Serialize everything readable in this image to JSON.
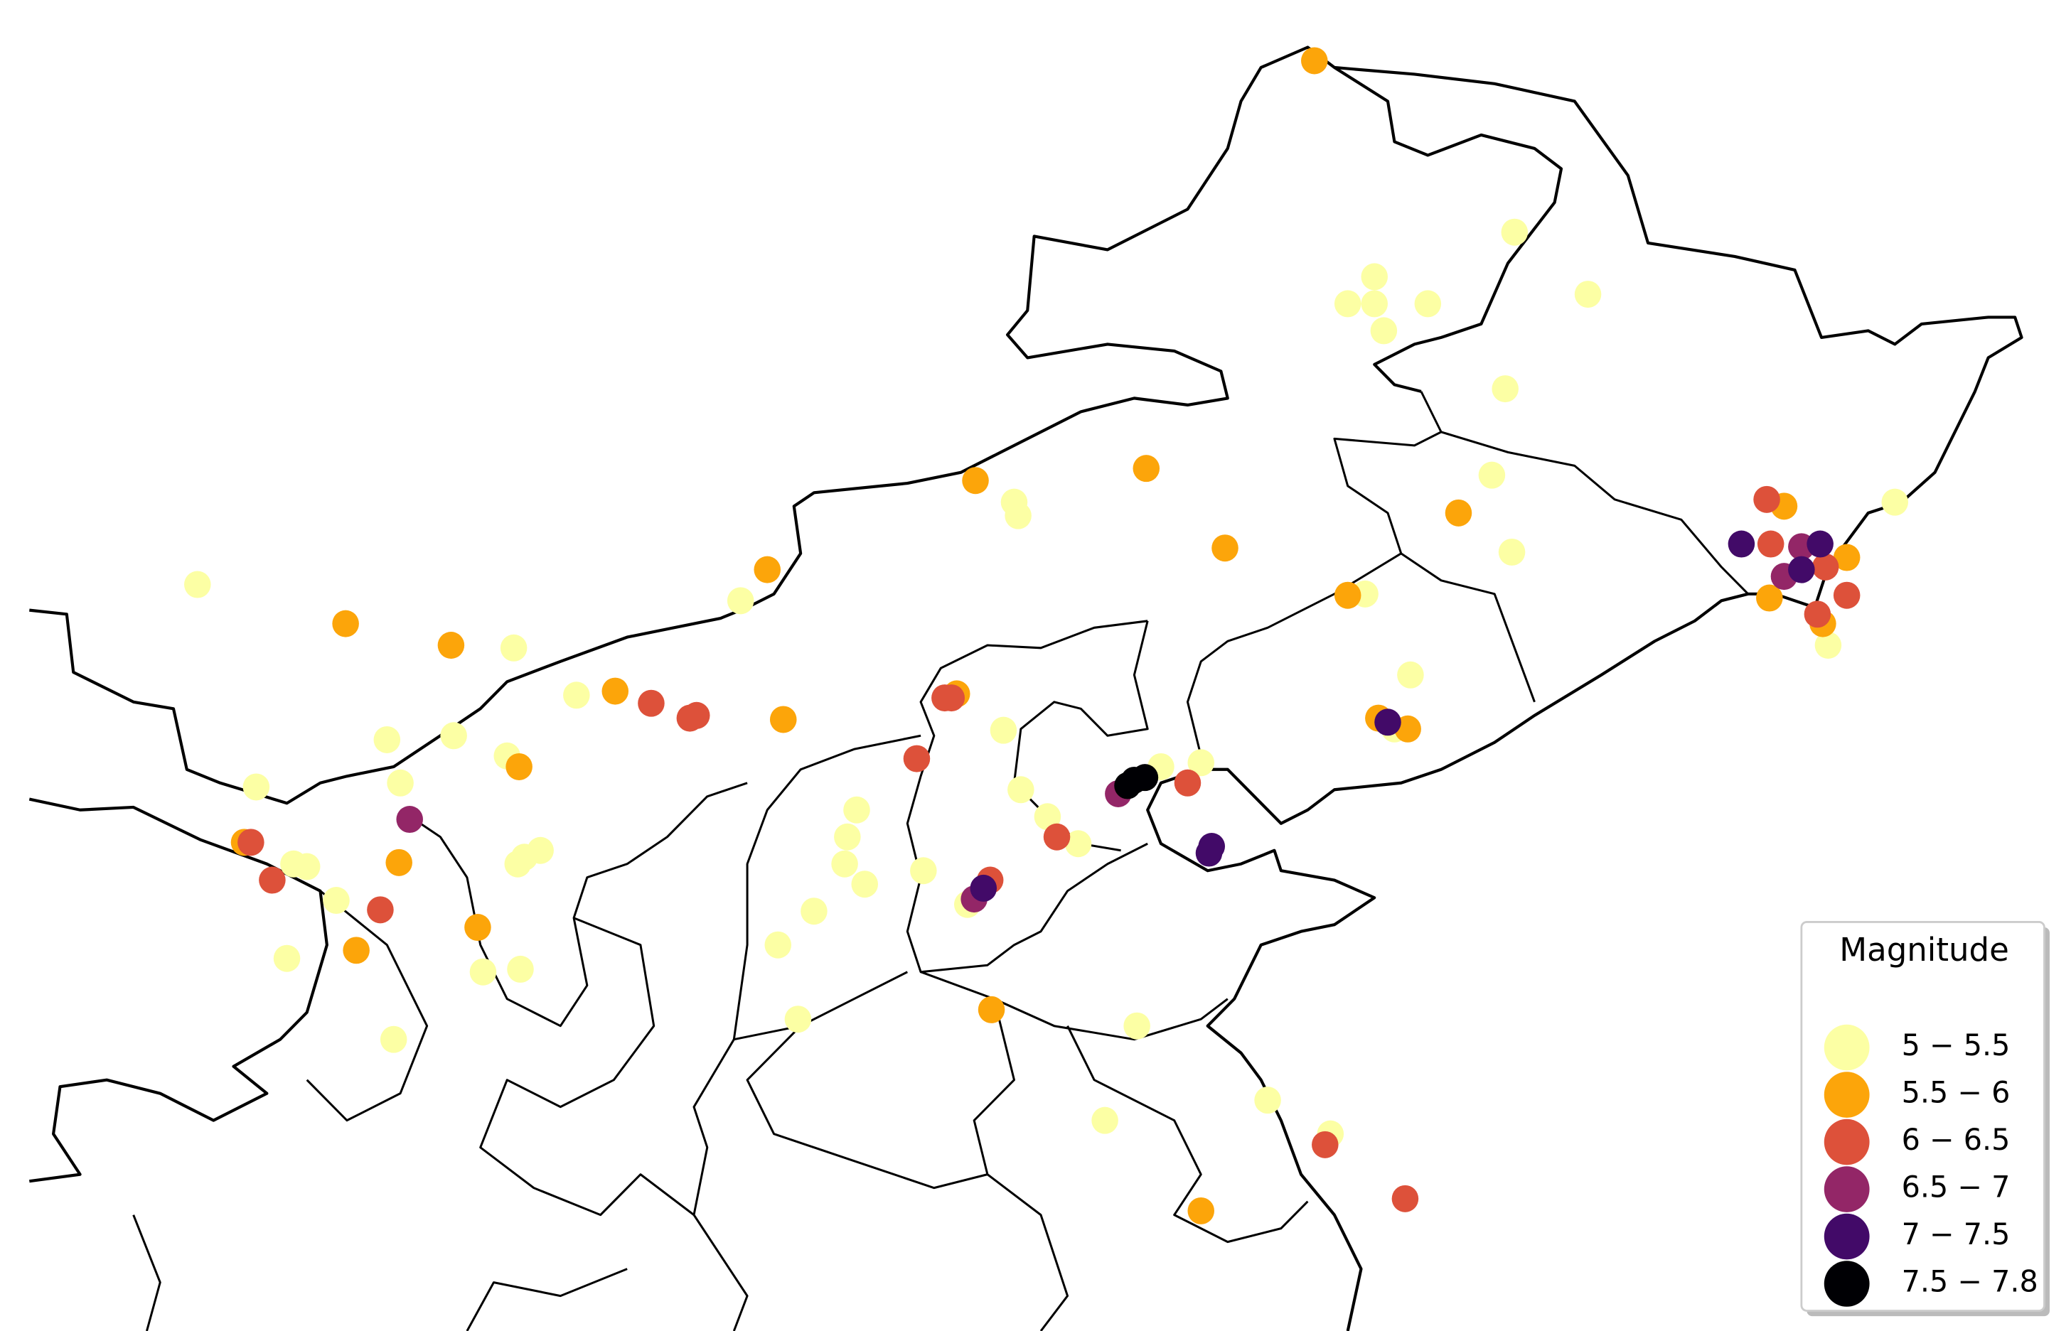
{
  "legend": {
    "title": "Magnitude",
    "items": [
      {
        "label": "5 − 5.5",
        "color": "#fcffa4"
      },
      {
        "label": "5.5 − 6",
        "color": "#fca50a"
      },
      {
        "label": "6 − 6.5",
        "color": "#dd513a"
      },
      {
        "label": "6.5 − 7",
        "color": "#932667"
      },
      {
        "label": "7 − 7.5",
        "color": "#420a68"
      },
      {
        "label": "7.5 − 7.8",
        "color": "#000004"
      }
    ]
  }
}
